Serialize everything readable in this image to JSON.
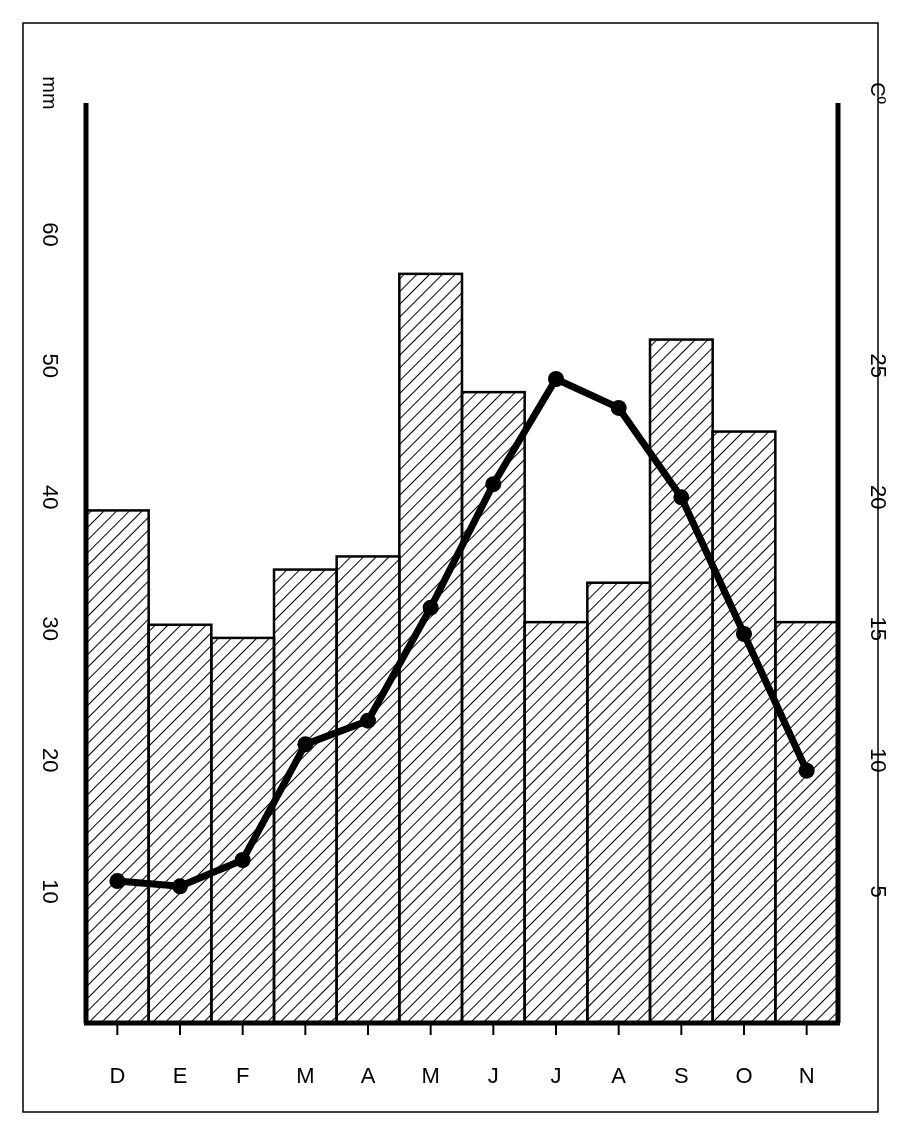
{
  "chart_data": {
    "type": "bar",
    "ylabel": "mm",
    "y2label": "Cº",
    "categories": [
      "D",
      "E",
      "F",
      "M",
      "A",
      "M",
      "J",
      "J",
      "A",
      "S",
      "O",
      "N"
    ],
    "ylim": [
      0,
      70
    ],
    "yticks": [
      10,
      20,
      30,
      40,
      50,
      60
    ],
    "y2lim": [
      0,
      35
    ],
    "y2ticks": [
      5,
      10,
      15,
      20,
      25
    ],
    "series": [
      {
        "color": "#000000",
        "values": [
          39,
          30.3,
          29.3,
          34.5,
          35.5,
          57,
          48,
          30.5,
          33.5,
          52,
          45,
          30.5
        ]
      },
      {
        "type": "line",
        "axis": "y2",
        "color": "#000000",
        "marker": "circle",
        "line_style": "solid",
        "values": [
          5.4,
          5.2,
          6.2,
          10.6,
          11.5,
          15.8,
          20.5,
          24.5,
          23.4,
          20,
          14.8,
          9.6
        ]
      }
    ]
  }
}
